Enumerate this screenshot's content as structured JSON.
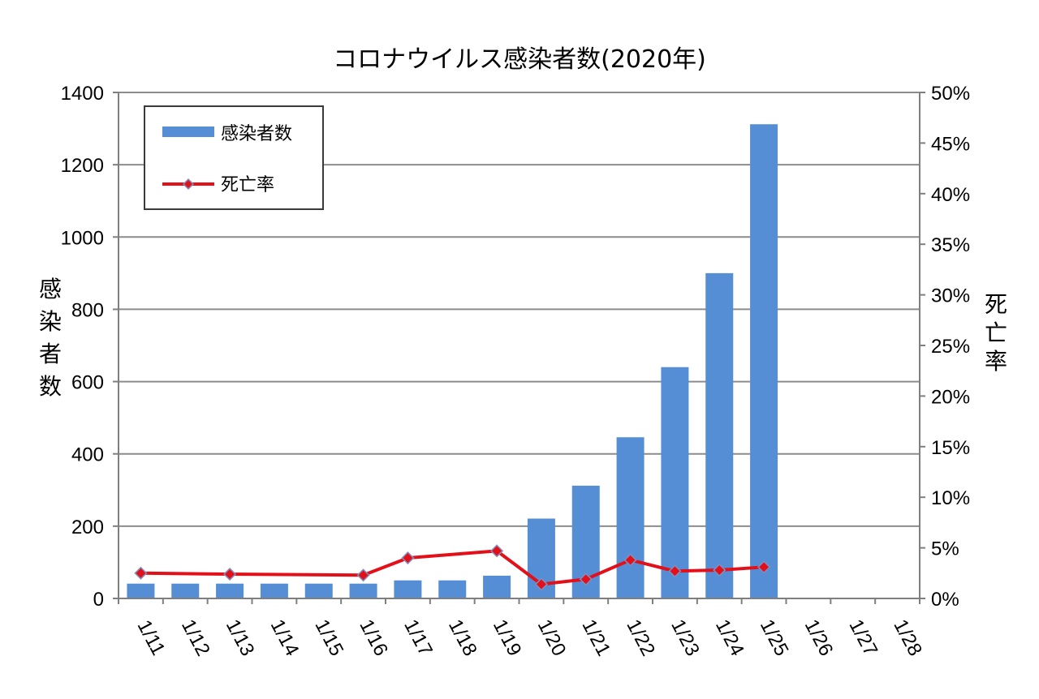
{
  "chart_data": {
    "type": "bar",
    "title": "コロナウイルス感染者数(2020年)",
    "categories": [
      "1/11",
      "1/12",
      "1/13",
      "1/14",
      "1/15",
      "1/16",
      "1/17",
      "1/18",
      "1/19",
      "1/20",
      "1/21",
      "1/22",
      "1/23",
      "1/24",
      "1/25",
      "1/26",
      "1/27",
      "1/28"
    ],
    "series": [
      {
        "name": "感染者数",
        "type": "bar",
        "axis": "left",
        "color": "#558ed5",
        "values": [
          41,
          41,
          41,
          41,
          41,
          41,
          50,
          50,
          63,
          221,
          312,
          446,
          640,
          900,
          1312,
          null,
          null,
          null
        ]
      },
      {
        "name": "死亡率",
        "type": "line",
        "axis": "right",
        "color": "#e3101a",
        "marker_color": "#e3101a",
        "marker_edge": "#7f8fbf",
        "values": [
          0.025,
          null,
          0.024,
          null,
          null,
          0.023,
          0.04,
          null,
          0.047,
          0.014,
          0.019,
          0.038,
          0.027,
          0.028,
          0.031,
          null,
          null,
          null
        ]
      }
    ],
    "ylabel_left": "感染者数",
    "ylabel_right": "死亡率",
    "ylim_left": [
      0,
      1400
    ],
    "yticks_left": [
      "0",
      "200",
      "400",
      "600",
      "800",
      "1000",
      "1200",
      "1400"
    ],
    "ylim_right": [
      0,
      0.5
    ],
    "yticks_right": [
      "0%",
      "5%",
      "10%",
      "15%",
      "20%",
      "25%",
      "30%",
      "35%",
      "40%",
      "45%",
      "50%"
    ],
    "grid": true,
    "legend_position": "top-left"
  }
}
